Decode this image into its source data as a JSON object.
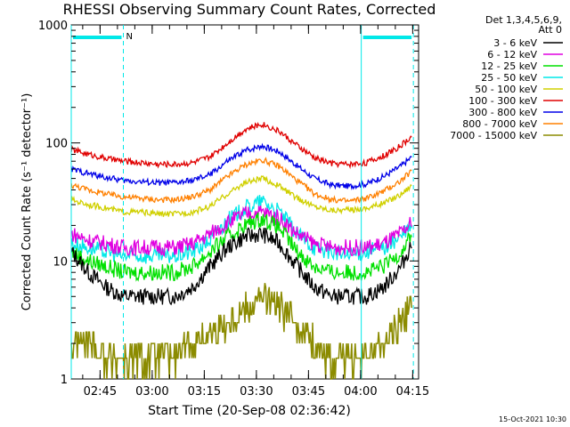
{
  "chart_data": {
    "type": "line",
    "title": "RHESSI Observing Summary Count Rates, Corrected",
    "xlabel": "Start Time (20-Sep-08 02:36:42)",
    "ylabel": "Corrected Count Rate (s⁻¹ detector⁻¹)",
    "yscale": "log",
    "ylim": [
      1,
      1000
    ],
    "xlim_minutes": [
      0,
      100
    ],
    "x_ticks": [
      "02:45",
      "03:00",
      "03:15",
      "03:30",
      "03:45",
      "04:00",
      "04:15"
    ],
    "x_ticks_minutes": [
      8.3,
      23.3,
      38.3,
      53.3,
      68.3,
      83.3,
      98.3
    ],
    "y_ticks": [
      "1",
      "10",
      "100",
      "1000"
    ],
    "y_ticks_values": [
      1,
      10,
      100,
      1000
    ],
    "legend_header": [
      "Det 1,3,4,5,6,9,",
      "Att 0"
    ],
    "legend_position": "right",
    "x_minutes": [
      0,
      5,
      10,
      15,
      20,
      25,
      30,
      35,
      40,
      45,
      50,
      55,
      60,
      65,
      70,
      75,
      80,
      85,
      90,
      95,
      98
    ],
    "series": [
      {
        "name": "3 - 6 keV",
        "color": "#000000",
        "values": [
          12,
          8,
          6,
          5,
          5,
          5,
          5,
          6,
          9,
          13,
          16,
          17,
          14,
          9,
          6,
          5,
          5,
          5,
          6,
          9,
          14
        ]
      },
      {
        "name": "6 - 12 keV",
        "color": "#e000e0",
        "values": [
          17,
          15,
          14,
          13,
          13,
          13,
          13,
          14,
          17,
          21,
          25,
          26,
          23,
          17,
          14,
          13,
          13,
          13,
          14,
          17,
          21
        ]
      },
      {
        "name": "12 - 25 keV",
        "color": "#00e000",
        "values": [
          12,
          10,
          9,
          8,
          8,
          8,
          8,
          9,
          12,
          16,
          20,
          23,
          19,
          12,
          9,
          8,
          8,
          8,
          9,
          12,
          17
        ]
      },
      {
        "name": "25 - 50 keV",
        "color": "#00e8e8",
        "values": [
          14,
          13,
          12,
          11,
          11,
          11,
          11,
          12,
          15,
          22,
          28,
          32,
          26,
          17,
          13,
          12,
          11,
          12,
          13,
          16,
          20
        ]
      },
      {
        "name": "50 - 100 keV",
        "color": "#d0d000",
        "values": [
          33,
          30,
          28,
          26,
          26,
          25,
          25,
          26,
          29,
          37,
          46,
          50,
          43,
          34,
          29,
          27,
          27,
          28,
          31,
          37,
          44
        ]
      },
      {
        "name": "100 - 300 keV",
        "color": "#e00000",
        "values": [
          88,
          80,
          74,
          70,
          68,
          66,
          66,
          68,
          76,
          100,
          130,
          145,
          125,
          95,
          75,
          67,
          66,
          68,
          78,
          95,
          113
        ]
      },
      {
        "name": "300 - 800 keV",
        "color": "#0000e8",
        "values": [
          60,
          55,
          51,
          48,
          47,
          46,
          46,
          48,
          54,
          70,
          86,
          95,
          84,
          64,
          50,
          44,
          43,
          45,
          52,
          64,
          76
        ]
      },
      {
        "name": "800 - 7000 keV",
        "color": "#ff8000",
        "values": [
          44,
          40,
          37,
          35,
          34,
          33,
          33,
          35,
          40,
          52,
          65,
          72,
          63,
          48,
          37,
          33,
          32,
          34,
          39,
          48,
          58
        ]
      },
      {
        "name": "7000 - 15000 keV",
        "color": "#8b8b00",
        "values": [
          2,
          2,
          1.5,
          1.5,
          1.5,
          1.5,
          1.5,
          2,
          2.5,
          3,
          4,
          5,
          4,
          3,
          2,
          1.5,
          1.5,
          1.5,
          2,
          3,
          4
        ]
      }
    ],
    "annotations": [
      {
        "type": "flag_bar",
        "label": "N",
        "x_start_minutes": 0,
        "x_end_minutes": 15,
        "color": "#00e8e8"
      },
      {
        "type": "flag_bar",
        "label": "",
        "x_start_minutes": 83.5,
        "x_end_minutes": 98.5,
        "color": "#00e8e8"
      }
    ],
    "vertical_lines": [
      {
        "x_minutes": 0,
        "style": "solid",
        "color": "#00e8e8"
      },
      {
        "x_minutes": 15,
        "style": "dashed",
        "color": "#00e8e8"
      },
      {
        "x_minutes": 83.5,
        "style": "solid",
        "color": "#00e8e8"
      },
      {
        "x_minutes": 98.5,
        "style": "dashed",
        "color": "#00e8e8"
      }
    ]
  },
  "footer": {
    "timestamp": "15-Oct-2021 10:30"
  }
}
